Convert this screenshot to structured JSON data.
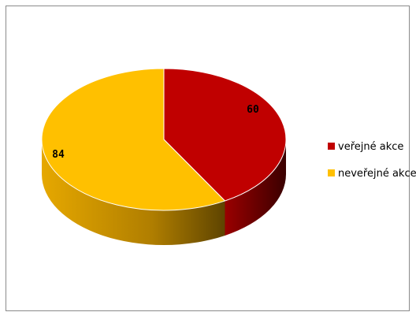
{
  "chart_data": {
    "type": "pie",
    "title": "",
    "style": "3d",
    "legend_position": "right",
    "slices": [
      {
        "name": "veřejné akce",
        "value": 60,
        "label": "60",
        "color": "#c00000"
      },
      {
        "name": "neveřejné akce",
        "value": 84,
        "label": "84",
        "color": "#ffc000"
      }
    ]
  }
}
